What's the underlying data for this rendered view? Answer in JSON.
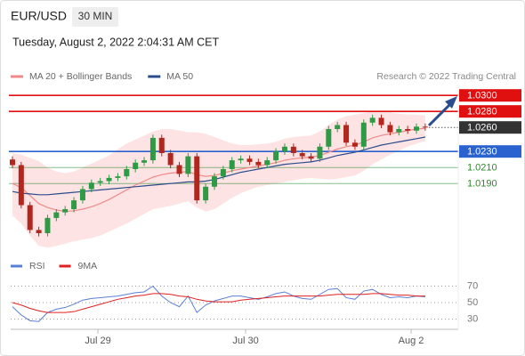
{
  "header": {
    "symbol": "EUR/USD",
    "interval": "30 MIN",
    "timestamp": "Tuesday, August 2, 2022 2:04:31 AM CET"
  },
  "chart_data": [
    {
      "type": "candlestick",
      "source": "Research © 2022 Trading Central",
      "up_color": "#2f9a45",
      "down_color": "#b3261e",
      "open": [
        1.022,
        1.0213,
        1.0163,
        1.0132,
        1.0128,
        1.0147,
        1.0154,
        1.0158,
        1.0169,
        1.0183,
        1.0191,
        1.0193,
        1.0197,
        1.0199,
        1.0208,
        1.0216,
        1.0219,
        1.0247,
        1.0228,
        1.0213,
        1.0202,
        1.0224,
        1.0169,
        1.0186,
        1.0199,
        1.0208,
        1.0219,
        1.0221,
        1.0217,
        1.0213,
        1.0219,
        1.023,
        1.0236,
        1.0228,
        1.0224,
        1.0221,
        1.0236,
        1.0258,
        1.0263,
        1.0241,
        1.0236,
        1.0266,
        1.0272,
        1.0263,
        1.0254,
        1.0258,
        1.0256,
        1.0261
      ],
      "high": [
        1.0224,
        1.0217,
        1.0167,
        1.0136,
        1.0151,
        1.0158,
        1.0162,
        1.0173,
        1.0187,
        1.0195,
        1.0197,
        1.0201,
        1.0203,
        1.0212,
        1.022,
        1.0223,
        1.0251,
        1.0251,
        1.0232,
        1.0217,
        1.0228,
        1.0228,
        1.019,
        1.0203,
        1.0212,
        1.0223,
        1.0225,
        1.0225,
        1.0221,
        1.0223,
        1.0234,
        1.024,
        1.024,
        1.0232,
        1.0228,
        1.024,
        1.0262,
        1.0267,
        1.0267,
        1.0245,
        1.027,
        1.0276,
        1.0276,
        1.0267,
        1.0262,
        1.0262,
        1.0265,
        1.0265
      ],
      "low": [
        1.0209,
        1.0159,
        1.0128,
        1.0124,
        1.0124,
        1.0143,
        1.015,
        1.0154,
        1.0165,
        1.0179,
        1.0187,
        1.0189,
        1.0193,
        1.0195,
        1.0204,
        1.0212,
        1.0215,
        1.0224,
        1.0209,
        1.0198,
        1.0198,
        1.0165,
        1.0165,
        1.0182,
        1.0195,
        1.0204,
        1.0215,
        1.0213,
        1.0209,
        1.0209,
        1.0215,
        1.0226,
        1.0224,
        1.022,
        1.0217,
        1.0217,
        1.0232,
        1.0254,
        1.0237,
        1.0232,
        1.0232,
        1.0262,
        1.0259,
        1.025,
        1.025,
        1.0252,
        1.0252,
        1.0256
      ],
      "close": [
        1.0213,
        1.0163,
        1.0132,
        1.0128,
        1.0147,
        1.0154,
        1.0158,
        1.0169,
        1.0183,
        1.0191,
        1.0193,
        1.0197,
        1.0199,
        1.0208,
        1.0216,
        1.0219,
        1.0247,
        1.0228,
        1.0213,
        1.0202,
        1.0224,
        1.0169,
        1.0186,
        1.0199,
        1.0208,
        1.0219,
        1.0221,
        1.0217,
        1.0213,
        1.0219,
        1.023,
        1.0236,
        1.0228,
        1.0224,
        1.0221,
        1.0236,
        1.0258,
        1.0263,
        1.0241,
        1.0236,
        1.0266,
        1.0272,
        1.0263,
        1.0254,
        1.0258,
        1.0256,
        1.0261,
        1.026
      ],
      "series": [
        {
          "name": "MA 20 + Bollinger Bands",
          "color": "#f08a8a",
          "band_color": "#fde3e3",
          "values": [
            1.019,
            1.0185,
            1.0175,
            1.0165,
            1.016,
            1.0157,
            1.0155,
            1.0156,
            1.0158,
            1.0161,
            1.0165,
            1.017,
            1.0176,
            1.0182,
            1.0188,
            1.0193,
            1.0198,
            1.0201,
            1.0203,
            1.0204,
            1.0205,
            1.0201,
            1.0199,
            1.02,
            1.0203,
            1.0206,
            1.0208,
            1.021,
            1.0212,
            1.0214,
            1.0216,
            1.0219,
            1.0221,
            1.0222,
            1.0223,
            1.0225,
            1.0229,
            1.0233,
            1.0236,
            1.0238,
            1.0242,
            1.0247,
            1.025,
            1.0252,
            1.0254,
            1.0256,
            1.0258,
            1.0259
          ],
          "upper": [
            1.0228,
            1.0226,
            1.0222,
            1.0218,
            1.021,
            1.0205,
            1.0203,
            1.0205,
            1.021,
            1.0215,
            1.022,
            1.0225,
            1.0233,
            1.024,
            1.0245,
            1.025,
            1.0255,
            1.0258,
            1.0258,
            1.0256,
            1.0254,
            1.0254,
            1.0252,
            1.0248,
            1.0244,
            1.024,
            1.0238,
            1.0238,
            1.0239,
            1.024,
            1.0242,
            1.0246,
            1.0248,
            1.0249,
            1.025,
            1.0255,
            1.0263,
            1.027,
            1.0274,
            1.0276,
            1.0278,
            1.028,
            1.0281,
            1.0279,
            1.0277,
            1.0276,
            1.0276,
            1.0275
          ],
          "lower": [
            1.015,
            1.014,
            1.0125,
            1.0112,
            1.011,
            1.0112,
            1.0115,
            1.0118,
            1.012,
            1.0122,
            1.0125,
            1.013,
            1.0135,
            1.014,
            1.0146,
            1.0152,
            1.0158,
            1.016,
            1.0162,
            1.0165,
            1.0168,
            1.016,
            1.0155,
            1.0158,
            1.0165,
            1.0172,
            1.0178,
            1.0182,
            1.0186,
            1.0188,
            1.019,
            1.0192,
            1.0194,
            1.0196,
            1.0197,
            1.0196,
            1.0195,
            1.0196,
            1.0198,
            1.02,
            1.0206,
            1.0214,
            1.022,
            1.0226,
            1.0231,
            1.0236,
            1.024,
            1.0243
          ]
        },
        {
          "name": "MA 50",
          "color": "#2b4c8c",
          "values": [
            1.018,
            1.0178,
            1.0177,
            1.0176,
            1.0176,
            1.0177,
            1.0178,
            1.0179,
            1.018,
            1.0181,
            1.0182,
            1.0183,
            1.0184,
            1.0185,
            1.0186,
            1.0187,
            1.0188,
            1.0189,
            1.019,
            1.0191,
            1.0192,
            1.0192,
            1.0193,
            1.0195,
            1.0198,
            1.0201,
            1.0204,
            1.0206,
            1.0208,
            1.021,
            1.0212,
            1.0214,
            1.0215,
            1.0216,
            1.0217,
            1.0219,
            1.0222,
            1.0225,
            1.0227,
            1.0229,
            1.0232,
            1.0235,
            1.0238,
            1.024,
            1.0242,
            1.0244,
            1.0246,
            1.0248
          ]
        }
      ],
      "levels": [
        {
          "value": 1.03,
          "label": "1.0300",
          "color": "#e01010",
          "box": true,
          "dotted": false
        },
        {
          "value": 1.028,
          "label": "1.0280",
          "color": "#e01010",
          "box": true,
          "dotted": false
        },
        {
          "value": 1.026,
          "label": "1.0260",
          "color": "#333333",
          "box": true,
          "dotted": true
        },
        {
          "value": 1.023,
          "label": "1.0230",
          "color": "#2a62d0",
          "box": true,
          "dotted": false
        },
        {
          "value": 1.021,
          "label": "1.0210",
          "color": "#2a8a2a",
          "box": false,
          "dotted": false
        },
        {
          "value": 1.019,
          "label": "1.0190",
          "color": "#2a8a2a",
          "box": false,
          "dotted": false
        }
      ],
      "ylim": [
        1.0108,
        1.0308
      ],
      "xlim": [
        -0.2,
        50.76
      ]
    },
    {
      "type": "line",
      "series": [
        {
          "name": "RSI",
          "color": "#5b7fd6",
          "values": [
            45,
            35,
            28,
            27,
            38,
            42,
            44,
            48,
            53,
            55,
            56,
            57,
            58,
            60,
            62,
            63,
            70,
            58,
            50,
            45,
            58,
            38,
            47,
            52,
            55,
            58,
            58,
            56,
            54,
            57,
            61,
            63,
            58,
            55,
            54,
            60,
            66,
            67,
            56,
            54,
            64,
            66,
            60,
            56,
            57,
            56,
            58,
            57
          ]
        },
        {
          "name": "9MA",
          "color": "#e02020",
          "values": [
            50,
            47,
            43,
            40,
            38,
            38,
            38,
            39,
            42,
            45,
            48,
            51,
            54,
            56,
            58,
            59,
            61,
            61,
            60,
            58,
            57,
            54,
            52,
            51,
            51,
            51,
            53,
            54,
            55,
            56,
            57,
            58,
            58,
            58,
            58,
            58,
            59,
            60,
            60,
            60,
            60,
            61,
            61,
            60,
            59,
            59,
            58,
            58
          ]
        }
      ],
      "ylim": [
        20,
        80
      ],
      "yticks": [
        30,
        50,
        70
      ],
      "xlim": [
        -0.2,
        50.76
      ],
      "xticks": [
        {
          "value": 9.73,
          "label": "Jul 29"
        },
        {
          "value": 26.55,
          "label": "Jul 30"
        },
        {
          "value": 45.39,
          "label": "Aug 2"
        }
      ]
    }
  ]
}
